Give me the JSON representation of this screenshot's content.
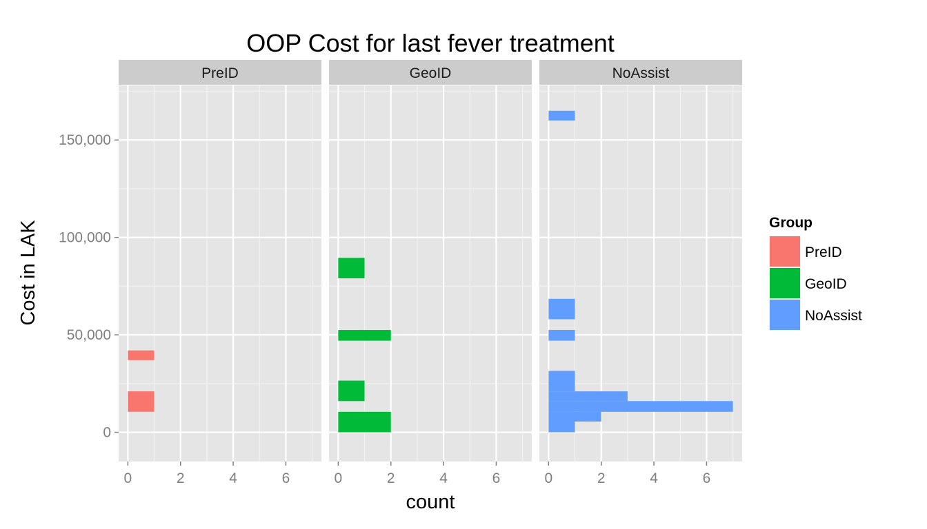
{
  "chart_data": {
    "type": "bar",
    "orientation": "horizontal-histogram",
    "title": "OOP Cost for last fever treatment",
    "xlabel": "count",
    "ylabel": "Cost in LAK",
    "x_ticks": [
      "0",
      "2",
      "4",
      "6"
    ],
    "x_tick_values": [
      0,
      2,
      4,
      6
    ],
    "xlim": [
      -0.35,
      7.35
    ],
    "y_ticks": [
      "0",
      "50,000",
      "100,000",
      "150,000"
    ],
    "y_tick_values": [
      0,
      50000,
      100000,
      150000
    ],
    "ylim": [
      -15000,
      178000
    ],
    "grid": true,
    "legend": {
      "title": "Group",
      "position": "right",
      "entries": [
        {
          "label": "PreID",
          "color": "#F8766D"
        },
        {
          "label": "GeoID",
          "color": "#00BA38"
        },
        {
          "label": "NoAssist",
          "color": "#619CFF"
        }
      ]
    },
    "facets": [
      {
        "strip": "PreID",
        "color": "#F8766D",
        "bins": [
          {
            "y0": 10500,
            "y1": 21000,
            "count": 1
          },
          {
            "y0": 37000,
            "y1": 42000,
            "count": 1
          }
        ]
      },
      {
        "strip": "GeoID",
        "color": "#00BA38",
        "bins": [
          {
            "y0": 0,
            "y1": 10500,
            "count": 2
          },
          {
            "y0": 16000,
            "y1": 26500,
            "count": 1
          },
          {
            "y0": 47000,
            "y1": 52500,
            "count": 2
          },
          {
            "y0": 79000,
            "y1": 89500,
            "count": 1
          }
        ]
      },
      {
        "strip": "NoAssist",
        "color": "#619CFF",
        "bins": [
          {
            "y0": 0,
            "y1": 5500,
            "count": 1
          },
          {
            "y0": 5500,
            "y1": 10500,
            "count": 2
          },
          {
            "y0": 10500,
            "y1": 16000,
            "count": 7
          },
          {
            "y0": 16000,
            "y1": 21000,
            "count": 3
          },
          {
            "y0": 21000,
            "y1": 31500,
            "count": 1
          },
          {
            "y0": 47000,
            "y1": 52500,
            "count": 1
          },
          {
            "y0": 58000,
            "y1": 68500,
            "count": 1
          },
          {
            "y0": 160000,
            "y1": 165000,
            "count": 1
          }
        ]
      }
    ]
  }
}
